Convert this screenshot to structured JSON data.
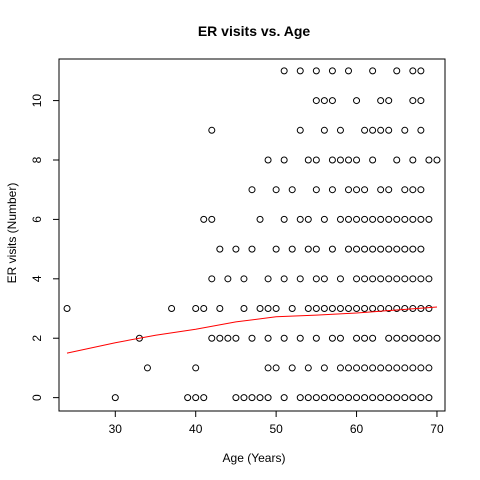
{
  "chart_data": {
    "type": "scatter",
    "title": "ER visits vs. Age",
    "xlabel": "Age (Years)",
    "ylabel": "ER visits (Number)",
    "xlim": [
      23,
      71
    ],
    "ylim": [
      -0.45,
      11.4
    ],
    "xticks": [
      30,
      40,
      50,
      60,
      70
    ],
    "yticks": [
      0,
      2,
      4,
      6,
      8,
      10
    ],
    "grid": false,
    "legend": "none",
    "marker_color": "#000000",
    "trend_color": "#ff0000",
    "points": [
      [
        24,
        3
      ],
      [
        30,
        0
      ],
      [
        33,
        2
      ],
      [
        34,
        1
      ],
      [
        37,
        3
      ],
      [
        39,
        0
      ],
      [
        40,
        0
      ],
      [
        40,
        1
      ],
      [
        40,
        3
      ],
      [
        41,
        0
      ],
      [
        41,
        3
      ],
      [
        41,
        6
      ],
      [
        42,
        2
      ],
      [
        42,
        4
      ],
      [
        42,
        6
      ],
      [
        42,
        9
      ],
      [
        43,
        2
      ],
      [
        43,
        3
      ],
      [
        43,
        5
      ],
      [
        44,
        2
      ],
      [
        44,
        4
      ],
      [
        45,
        0
      ],
      [
        45,
        2
      ],
      [
        45,
        5
      ],
      [
        46,
        0
      ],
      [
        46,
        3
      ],
      [
        46,
        4
      ],
      [
        47,
        0
      ],
      [
        47,
        2
      ],
      [
        47,
        5
      ],
      [
        47,
        7
      ],
      [
        48,
        0
      ],
      [
        48,
        3
      ],
      [
        48,
        6
      ],
      [
        49,
        0
      ],
      [
        49,
        1
      ],
      [
        49,
        2
      ],
      [
        49,
        3
      ],
      [
        49,
        4
      ],
      [
        49,
        8
      ],
      [
        50,
        1
      ],
      [
        50,
        3
      ],
      [
        50,
        5
      ],
      [
        50,
        7
      ],
      [
        51,
        0
      ],
      [
        51,
        2
      ],
      [
        51,
        4
      ],
      [
        51,
        6
      ],
      [
        51,
        8
      ],
      [
        51,
        11
      ],
      [
        52,
        1
      ],
      [
        52,
        3
      ],
      [
        52,
        5
      ],
      [
        52,
        7
      ],
      [
        53,
        0
      ],
      [
        53,
        2
      ],
      [
        53,
        4
      ],
      [
        53,
        6
      ],
      [
        53,
        9
      ],
      [
        53,
        11
      ],
      [
        54,
        0
      ],
      [
        54,
        1
      ],
      [
        54,
        3
      ],
      [
        54,
        5
      ],
      [
        54,
        6
      ],
      [
        54,
        8
      ],
      [
        55,
        0
      ],
      [
        55,
        2
      ],
      [
        55,
        3
      ],
      [
        55,
        4
      ],
      [
        55,
        5
      ],
      [
        55,
        7
      ],
      [
        55,
        8
      ],
      [
        55,
        10
      ],
      [
        55,
        11
      ],
      [
        56,
        0
      ],
      [
        56,
        1
      ],
      [
        56,
        3
      ],
      [
        56,
        4
      ],
      [
        56,
        6
      ],
      [
        56,
        9
      ],
      [
        56,
        10
      ],
      [
        57,
        0
      ],
      [
        57,
        2
      ],
      [
        57,
        3
      ],
      [
        57,
        5
      ],
      [
        57,
        7
      ],
      [
        57,
        8
      ],
      [
        57,
        10
      ],
      [
        57,
        11
      ],
      [
        58,
        0
      ],
      [
        58,
        1
      ],
      [
        58,
        2
      ],
      [
        58,
        3
      ],
      [
        58,
        4
      ],
      [
        58,
        6
      ],
      [
        58,
        8
      ],
      [
        58,
        9
      ],
      [
        59,
        0
      ],
      [
        59,
        1
      ],
      [
        59,
        3
      ],
      [
        59,
        5
      ],
      [
        59,
        6
      ],
      [
        59,
        7
      ],
      [
        59,
        8
      ],
      [
        59,
        11
      ],
      [
        60,
        0
      ],
      [
        60,
        1
      ],
      [
        60,
        2
      ],
      [
        60,
        3
      ],
      [
        60,
        4
      ],
      [
        60,
        5
      ],
      [
        60,
        6
      ],
      [
        60,
        7
      ],
      [
        60,
        8
      ],
      [
        60,
        10
      ],
      [
        61,
        0
      ],
      [
        61,
        1
      ],
      [
        61,
        2
      ],
      [
        61,
        3
      ],
      [
        61,
        4
      ],
      [
        61,
        5
      ],
      [
        61,
        6
      ],
      [
        61,
        7
      ],
      [
        61,
        9
      ],
      [
        62,
        0
      ],
      [
        62,
        1
      ],
      [
        62,
        2
      ],
      [
        62,
        3
      ],
      [
        62,
        4
      ],
      [
        62,
        5
      ],
      [
        62,
        6
      ],
      [
        62,
        8
      ],
      [
        62,
        9
      ],
      [
        62,
        11
      ],
      [
        63,
        0
      ],
      [
        63,
        1
      ],
      [
        63,
        3
      ],
      [
        63,
        4
      ],
      [
        63,
        5
      ],
      [
        63,
        6
      ],
      [
        63,
        7
      ],
      [
        63,
        9
      ],
      [
        63,
        10
      ],
      [
        64,
        0
      ],
      [
        64,
        1
      ],
      [
        64,
        2
      ],
      [
        64,
        3
      ],
      [
        64,
        4
      ],
      [
        64,
        5
      ],
      [
        64,
        6
      ],
      [
        64,
        7
      ],
      [
        64,
        9
      ],
      [
        64,
        10
      ],
      [
        65,
        0
      ],
      [
        65,
        1
      ],
      [
        65,
        2
      ],
      [
        65,
        3
      ],
      [
        65,
        4
      ],
      [
        65,
        5
      ],
      [
        65,
        6
      ],
      [
        65,
        8
      ],
      [
        65,
        11
      ],
      [
        66,
        0
      ],
      [
        66,
        1
      ],
      [
        66,
        2
      ],
      [
        66,
        3
      ],
      [
        66,
        4
      ],
      [
        66,
        5
      ],
      [
        66,
        6
      ],
      [
        66,
        7
      ],
      [
        66,
        9
      ],
      [
        67,
        0
      ],
      [
        67,
        1
      ],
      [
        67,
        2
      ],
      [
        67,
        3
      ],
      [
        67,
        4
      ],
      [
        67,
        5
      ],
      [
        67,
        6
      ],
      [
        67,
        7
      ],
      [
        67,
        8
      ],
      [
        67,
        10
      ],
      [
        67,
        11
      ],
      [
        68,
        0
      ],
      [
        68,
        1
      ],
      [
        68,
        2
      ],
      [
        68,
        3
      ],
      [
        68,
        4
      ],
      [
        68,
        5
      ],
      [
        68,
        6
      ],
      [
        68,
        7
      ],
      [
        68,
        9
      ],
      [
        68,
        10
      ],
      [
        68,
        11
      ],
      [
        69,
        0
      ],
      [
        69,
        1
      ],
      [
        69,
        2
      ],
      [
        69,
        3
      ],
      [
        69,
        4
      ],
      [
        69,
        6
      ],
      [
        69,
        8
      ],
      [
        70,
        2
      ],
      [
        70,
        8
      ]
    ],
    "trend": [
      [
        24,
        1.5
      ],
      [
        30,
        1.85
      ],
      [
        35,
        2.1
      ],
      [
        40,
        2.3
      ],
      [
        45,
        2.55
      ],
      [
        50,
        2.72
      ],
      [
        55,
        2.78
      ],
      [
        60,
        2.85
      ],
      [
        65,
        2.95
      ],
      [
        70,
        3.05
      ]
    ]
  }
}
